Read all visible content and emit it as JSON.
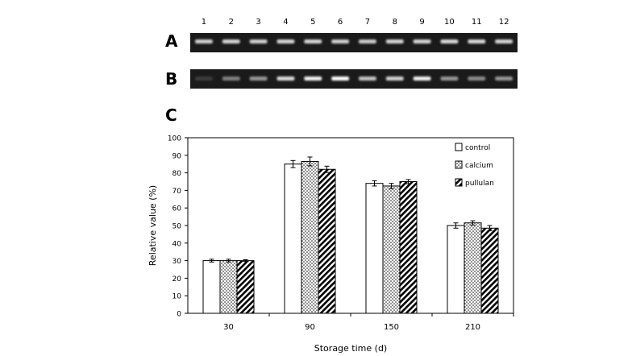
{
  "panels": {
    "a": {
      "label": "A"
    },
    "b": {
      "label": "B"
    },
    "c": {
      "label": "C"
    }
  },
  "lanes": [
    "1",
    "2",
    "3",
    "4",
    "5",
    "6",
    "7",
    "8",
    "9",
    "10",
    "11",
    "12"
  ],
  "gel_a_band_intensity": [
    0.8,
    0.82,
    0.8,
    0.82,
    0.82,
    0.8,
    0.78,
    0.82,
    0.82,
    0.84,
    0.84,
    0.82
  ],
  "gel_b_band_intensity": [
    0.15,
    0.45,
    0.55,
    0.85,
    0.95,
    1.0,
    0.75,
    0.8,
    0.95,
    0.55,
    0.5,
    0.55
  ],
  "colors": {
    "gel_bg": "#1a1a1a",
    "band": "#ffffff",
    "axis": "#000000"
  },
  "chart_data": {
    "type": "bar",
    "title": "",
    "xlabel": "Storage time (d)",
    "ylabel": "Relative value (%)",
    "categories": [
      "30",
      "90",
      "150",
      "210"
    ],
    "ylim": [
      0,
      100
    ],
    "yticks": [
      0,
      10,
      20,
      30,
      40,
      50,
      60,
      70,
      80,
      90,
      100
    ],
    "legend_position": "top-right",
    "series": [
      {
        "name": "control",
        "pattern": "white",
        "values": [
          30,
          85,
          74,
          50
        ],
        "errors": [
          0.8,
          2.0,
          1.5,
          1.5
        ]
      },
      {
        "name": "calcium",
        "pattern": "dotted",
        "values": [
          30,
          86.5,
          72.5,
          51.5
        ],
        "errors": [
          0.8,
          2.5,
          1.5,
          1.2
        ]
      },
      {
        "name": "pullulan",
        "pattern": "hatched",
        "values": [
          30,
          82,
          75,
          48.5
        ],
        "errors": [
          0.5,
          1.8,
          1.2,
          1.5
        ]
      }
    ]
  }
}
